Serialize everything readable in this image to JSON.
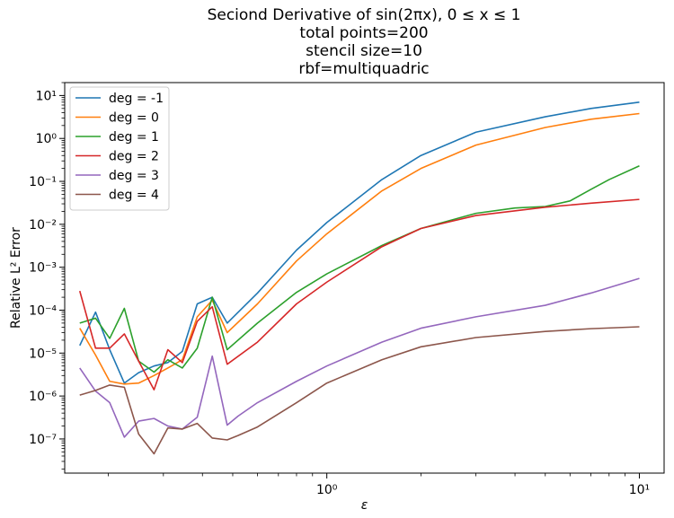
{
  "chart_data": {
    "type": "line",
    "title_lines": [
      "Seciond Derivative of sin(2πx), 0 ≤ x ≤ 1",
      "total points=200",
      "stencil size=10",
      "rbf=multiquadric"
    ],
    "xlabel": "ε",
    "ylabel": "Relative L² Error",
    "xscale": "log",
    "yscale": "log",
    "xlim": [
      0.145,
      12.0
    ],
    "ylim": [
      1.6e-08,
      20.0
    ],
    "xticks": [
      {
        "value": 1,
        "label": "10⁰"
      },
      {
        "value": 10,
        "label": "10¹"
      }
    ],
    "yticks": [
      {
        "value": 1e-07,
        "label": "10⁻⁷"
      },
      {
        "value": 1e-06,
        "label": "10⁻⁶"
      },
      {
        "value": 1e-05,
        "label": "10⁻⁵"
      },
      {
        "value": 0.0001,
        "label": "10⁻⁴"
      },
      {
        "value": 0.001,
        "label": "10⁻³"
      },
      {
        "value": 0.01,
        "label": "10⁻²"
      },
      {
        "value": 0.1,
        "label": "10⁻¹"
      },
      {
        "value": 1,
        "label": "10⁰"
      },
      {
        "value": 10,
        "label": "10¹"
      }
    ],
    "grid": false,
    "legend_position": "top-left",
    "series": [
      {
        "name": "deg = -1",
        "color": "#1f77b4",
        "x": [
          0.162,
          0.182,
          0.202,
          0.225,
          0.25,
          0.28,
          0.31,
          0.345,
          0.385,
          0.43,
          0.48,
          0.6,
          0.8,
          1.0,
          1.5,
          2.0,
          3.0,
          5.0,
          7.0,
          10.0
        ],
        "y": [
          1.5e-05,
          9e-05,
          1.2e-05,
          2e-06,
          3.5e-06,
          5e-06,
          6e-06,
          1.1e-05,
          0.00014,
          0.0002,
          5e-05,
          0.00025,
          0.0025,
          0.011,
          0.11,
          0.4,
          1.4,
          3.2,
          5.0,
          7.0
        ]
      },
      {
        "name": "deg = 0",
        "color": "#ff7f0e",
        "x": [
          0.162,
          0.182,
          0.202,
          0.225,
          0.25,
          0.28,
          0.31,
          0.345,
          0.385,
          0.43,
          0.48,
          0.6,
          0.8,
          1.0,
          1.5,
          2.0,
          3.0,
          5.0,
          7.0,
          10.0
        ],
        "y": [
          3.8e-05,
          9e-06,
          2.2e-06,
          1.9e-06,
          2e-06,
          3e-06,
          4.5e-06,
          7e-06,
          7e-05,
          0.00017,
          3e-05,
          0.00014,
          0.0014,
          0.006,
          0.06,
          0.2,
          0.7,
          1.8,
          2.8,
          3.8
        ]
      },
      {
        "name": "deg = 1",
        "color": "#2ca02c",
        "x": [
          0.162,
          0.182,
          0.202,
          0.225,
          0.25,
          0.28,
          0.31,
          0.345,
          0.385,
          0.43,
          0.48,
          0.6,
          0.8,
          1.0,
          1.5,
          2.0,
          3.0,
          4.0,
          5.0,
          6.0,
          7.0,
          8.0,
          10.0
        ],
        "y": [
          5e-05,
          6.5e-05,
          2.2e-05,
          0.00011,
          6.5e-06,
          3.6e-06,
          7e-06,
          4.5e-06,
          1.3e-05,
          0.0002,
          1.2e-05,
          5e-05,
          0.00026,
          0.0007,
          0.0032,
          0.008,
          0.018,
          0.024,
          0.026,
          0.035,
          0.065,
          0.11,
          0.23
        ]
      },
      {
        "name": "deg = 2",
        "color": "#d62728",
        "x": [
          0.162,
          0.182,
          0.202,
          0.225,
          0.25,
          0.28,
          0.31,
          0.345,
          0.385,
          0.43,
          0.48,
          0.6,
          0.8,
          1.0,
          1.5,
          2.0,
          3.0,
          5.0,
          7.0,
          10.0
        ],
        "y": [
          0.00028,
          1.3e-05,
          1.3e-05,
          2.8e-05,
          6.5e-06,
          1.4e-06,
          1.2e-05,
          6e-06,
          5.5e-05,
          0.00012,
          5.5e-06,
          1.8e-05,
          0.00014,
          0.00045,
          0.003,
          0.008,
          0.016,
          0.025,
          0.031,
          0.038
        ]
      },
      {
        "name": "deg = 3",
        "color": "#9467bd",
        "x": [
          0.162,
          0.182,
          0.202,
          0.225,
          0.25,
          0.28,
          0.31,
          0.345,
          0.385,
          0.43,
          0.48,
          0.52,
          0.6,
          0.8,
          1.0,
          1.5,
          2.0,
          3.0,
          5.0,
          7.0,
          10.0
        ],
        "y": [
          4.5e-06,
          1.3e-06,
          7e-07,
          1.1e-07,
          2.6e-07,
          3e-07,
          2e-07,
          1.7e-07,
          3.2e-07,
          8.5e-06,
          2.1e-07,
          3.4e-07,
          7e-07,
          2.2e-06,
          5e-06,
          1.8e-05,
          3.8e-05,
          7e-05,
          0.00013,
          0.00025,
          0.00055
        ]
      },
      {
        "name": "deg = 4",
        "color": "#8c564b",
        "x": [
          0.162,
          0.182,
          0.202,
          0.225,
          0.25,
          0.28,
          0.31,
          0.345,
          0.385,
          0.43,
          0.48,
          0.52,
          0.6,
          0.8,
          1.0,
          1.5,
          2.0,
          3.0,
          5.0,
          7.0,
          10.0
        ],
        "y": [
          1.05e-06,
          1.35e-06,
          1.8e-06,
          1.6e-06,
          1.3e-07,
          4.5e-08,
          1.8e-07,
          1.7e-07,
          2.3e-07,
          1.05e-07,
          9.5e-08,
          1.2e-07,
          1.9e-07,
          7e-07,
          2e-06,
          7e-06,
          1.4e-05,
          2.3e-05,
          3.2e-05,
          3.7e-05,
          4.1e-05
        ]
      }
    ]
  }
}
